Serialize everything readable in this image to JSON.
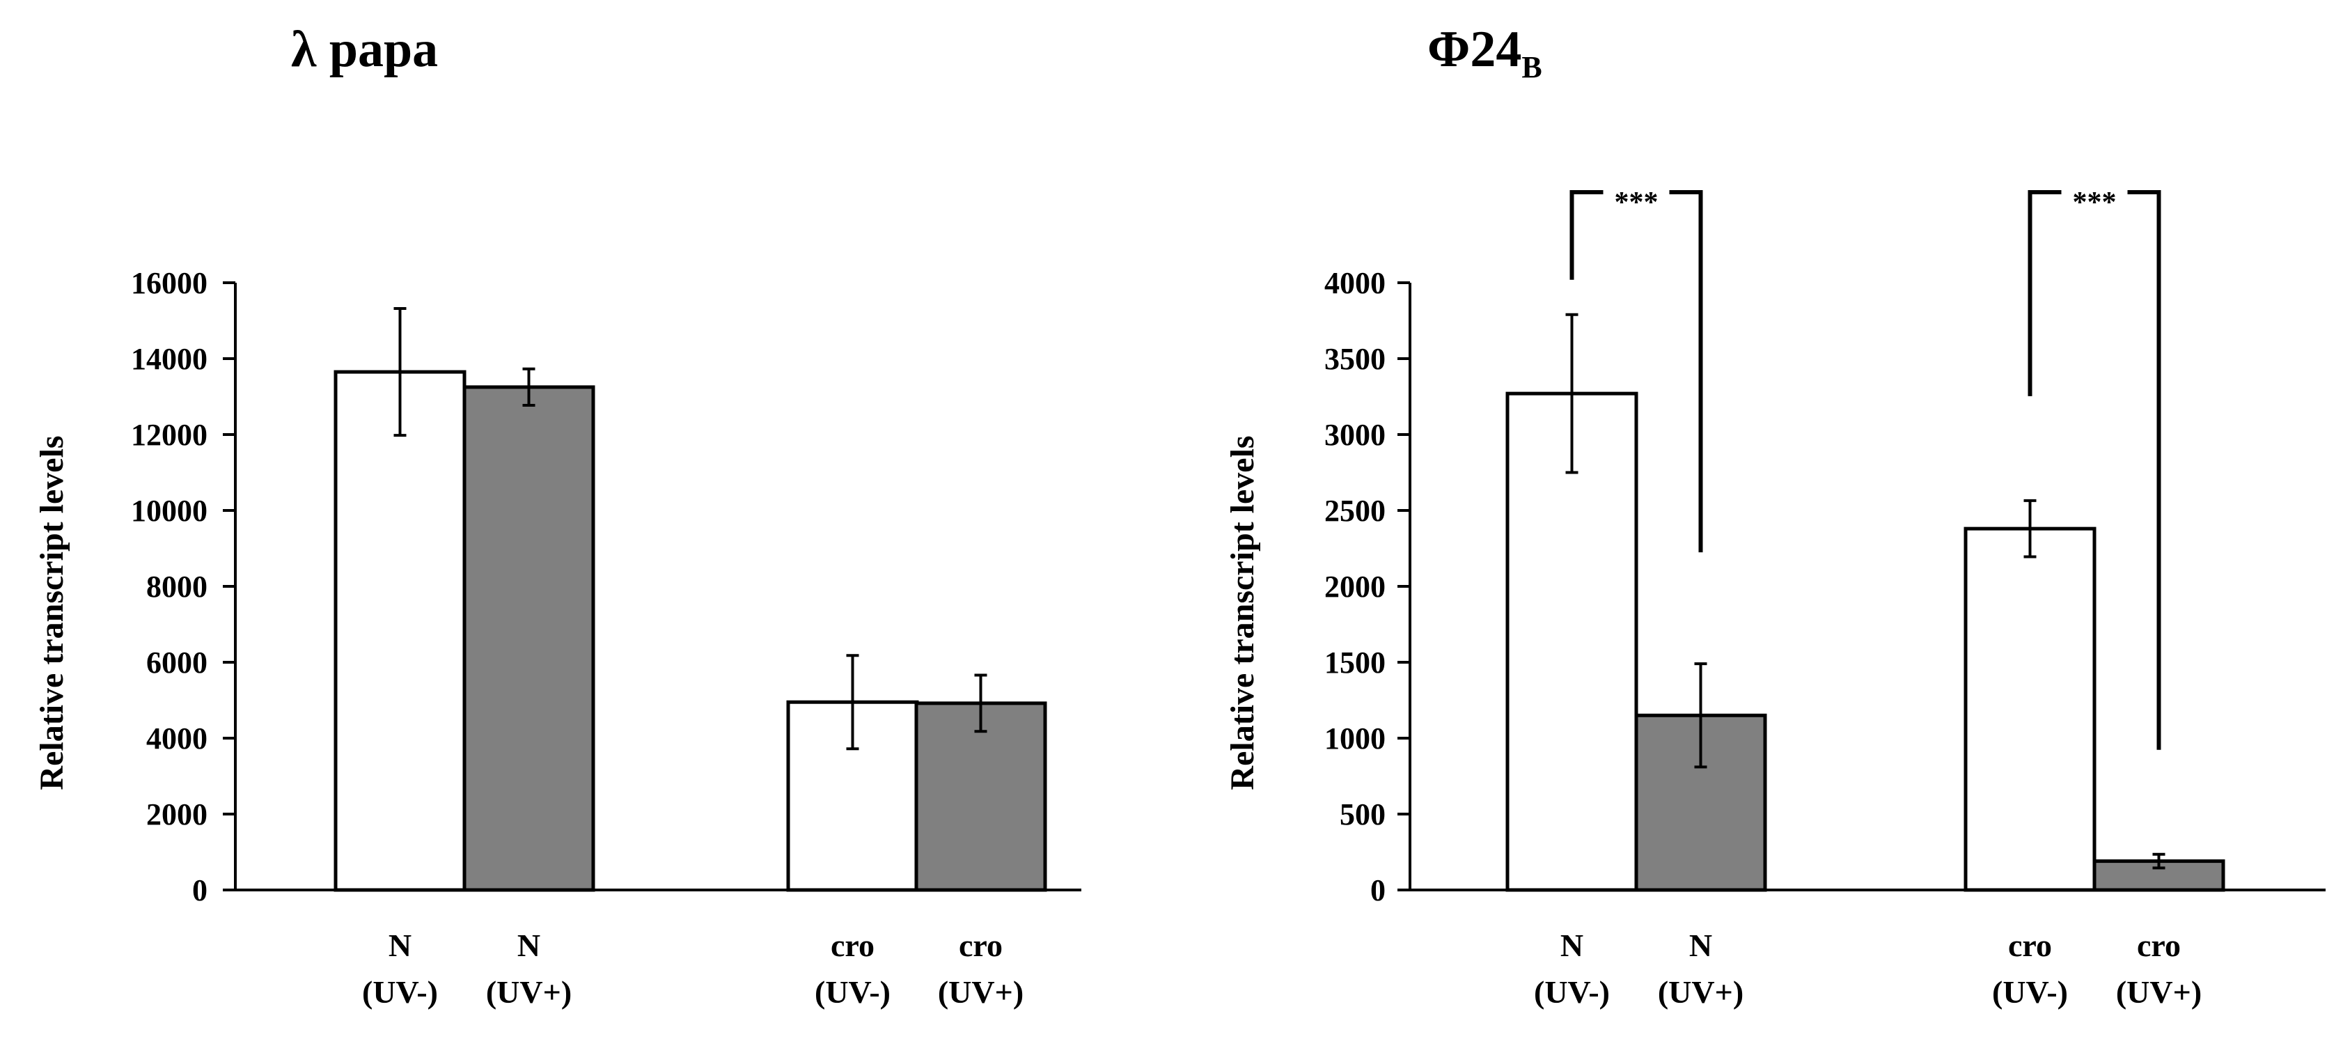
{
  "chart_data": [
    {
      "type": "bar",
      "title": "λ papa",
      "ylabel": "Relative transcript levels",
      "ylim": [
        0,
        16000
      ],
      "yticks": [
        0,
        2000,
        4000,
        6000,
        8000,
        10000,
        12000,
        14000,
        16000
      ],
      "bars": [
        {
          "label_top": "N",
          "label_bottom": "(UV-)",
          "value": 13650,
          "error": 1670,
          "color": "#ffffff"
        },
        {
          "label_top": "N",
          "label_bottom": "(UV+)",
          "value": 13250,
          "error": 480,
          "color": "#808080"
        },
        {
          "label_top": "cro",
          "label_bottom": "(UV-)",
          "value": 4950,
          "error": 1230,
          "color": "#ffffff"
        },
        {
          "label_top": "cro",
          "label_bottom": "(UV+)",
          "value": 4920,
          "error": 740,
          "color": "#808080"
        }
      ],
      "significance": []
    },
    {
      "type": "bar",
      "title": "Φ24",
      "title_subscript": "B",
      "ylabel": "Relative transcript levels",
      "ylim": [
        0,
        4000
      ],
      "yticks": [
        0,
        500,
        1000,
        1500,
        2000,
        2500,
        3000,
        3500,
        4000
      ],
      "bars": [
        {
          "label_top": "N",
          "label_bottom": "(UV-)",
          "value": 3270,
          "error": 520,
          "color": "#ffffff"
        },
        {
          "label_top": "N",
          "label_bottom": "(UV+)",
          "value": 1150,
          "error": 340,
          "color": "#808080"
        },
        {
          "label_top": "cro",
          "label_bottom": "(UV-)",
          "value": 2380,
          "error": 185,
          "color": "#ffffff"
        },
        {
          "label_top": "cro",
          "label_bottom": "(UV+)",
          "value": 190,
          "error": 45,
          "color": "#808080"
        }
      ],
      "significance": [
        {
          "from": 0,
          "to": 1,
          "text": "***"
        },
        {
          "from": 2,
          "to": 3,
          "text": "***"
        }
      ]
    }
  ]
}
